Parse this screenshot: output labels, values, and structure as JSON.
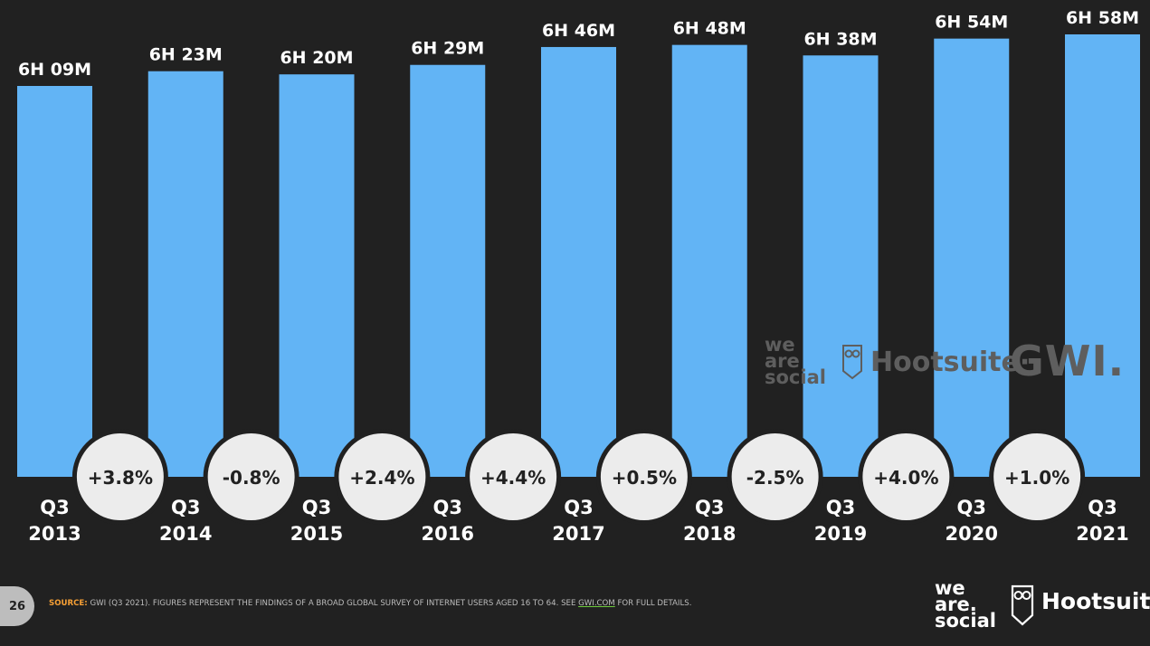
{
  "chart_data": {
    "type": "bar",
    "categories": [
      [
        "Q3",
        "2013"
      ],
      [
        "Q3",
        "2014"
      ],
      [
        "Q3",
        "2015"
      ],
      [
        "Q3",
        "2016"
      ],
      [
        "Q3",
        "2017"
      ],
      [
        "Q3",
        "2018"
      ],
      [
        "Q3",
        "2019"
      ],
      [
        "Q3",
        "2020"
      ],
      [
        "Q3",
        "2021"
      ]
    ],
    "values_minutes": [
      369,
      383,
      380,
      389,
      406,
      408,
      398,
      414,
      418
    ],
    "value_labels": [
      "6H 09M",
      "6H 23M",
      "6H 20M",
      "6H 29M",
      "6H 46M",
      "6H 48M",
      "6H 38M",
      "6H 54M",
      "6H 58M"
    ],
    "changes": [
      "+3.8%",
      "-0.8%",
      "+2.4%",
      "+4.4%",
      "+0.5%",
      "-2.5%",
      "+4.0%",
      "+1.0%"
    ],
    "bar_color": "#62b4f5",
    "bubble_color": "#ececec",
    "background": "#212121"
  },
  "watermark": {
    "we_are_social": [
      "we",
      "are",
      "social"
    ],
    "hootsuite": "Hootsuite",
    "hootsuite_mark": "·",
    "gwi": "GWI."
  },
  "footer": {
    "page_number": "26",
    "source_label": "SOURCE:",
    "source_text_1": " GWI (Q3 2021). FIGURES REPRESENT THE FINDINGS OF A BROAD GLOBAL SURVEY OF INTERNET USERS AGED 16 TO 64. SEE ",
    "source_link": "GWI.COM",
    "source_text_2": " FOR FULL DETAILS.",
    "logo_we_are_social": [
      "we",
      "are.",
      "social"
    ],
    "logo_hootsuite": "Hootsuite"
  }
}
